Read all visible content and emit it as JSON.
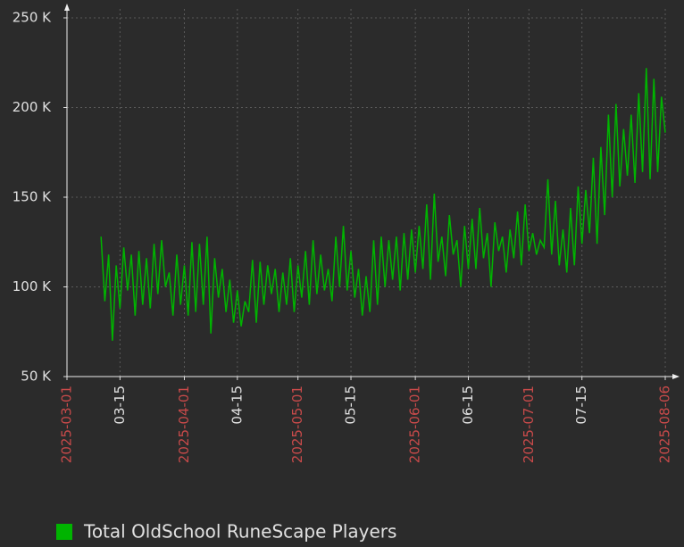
{
  "chart_data": {
    "type": "line",
    "x": [
      "2025-03-10",
      "2025-03-11",
      "2025-03-12",
      "2025-03-13",
      "2025-03-14",
      "2025-03-15",
      "2025-03-16",
      "2025-03-17",
      "2025-03-18",
      "2025-03-19",
      "2025-03-20",
      "2025-03-21",
      "2025-03-22",
      "2025-03-23",
      "2025-03-24",
      "2025-03-25",
      "2025-03-26",
      "2025-03-27",
      "2025-03-28",
      "2025-03-29",
      "2025-03-30",
      "2025-03-31",
      "2025-04-01",
      "2025-04-02",
      "2025-04-03",
      "2025-04-04",
      "2025-04-05",
      "2025-04-06",
      "2025-04-07",
      "2025-04-08",
      "2025-04-09",
      "2025-04-10",
      "2025-04-11",
      "2025-04-12",
      "2025-04-13",
      "2025-04-14",
      "2025-04-15",
      "2025-04-16",
      "2025-04-17",
      "2025-04-18",
      "2025-04-19",
      "2025-04-20",
      "2025-04-21",
      "2025-04-22",
      "2025-04-23",
      "2025-04-24",
      "2025-04-25",
      "2025-04-26",
      "2025-04-27",
      "2025-04-28",
      "2025-04-29",
      "2025-04-30",
      "2025-05-01",
      "2025-05-02",
      "2025-05-03",
      "2025-05-04",
      "2025-05-05",
      "2025-05-06",
      "2025-05-07",
      "2025-05-08",
      "2025-05-09",
      "2025-05-10",
      "2025-05-11",
      "2025-05-12",
      "2025-05-13",
      "2025-05-14",
      "2025-05-15",
      "2025-05-16",
      "2025-05-17",
      "2025-05-18",
      "2025-05-19",
      "2025-05-20",
      "2025-05-21",
      "2025-05-22",
      "2025-05-23",
      "2025-05-24",
      "2025-05-25",
      "2025-05-26",
      "2025-05-27",
      "2025-05-28",
      "2025-05-29",
      "2025-05-30",
      "2025-05-31",
      "2025-06-01",
      "2025-06-02",
      "2025-06-03",
      "2025-06-04",
      "2025-06-05",
      "2025-06-06",
      "2025-06-07",
      "2025-06-08",
      "2025-06-09",
      "2025-06-10",
      "2025-06-11",
      "2025-06-12",
      "2025-06-13",
      "2025-06-14",
      "2025-06-15",
      "2025-06-16",
      "2025-06-17",
      "2025-06-18",
      "2025-06-19",
      "2025-06-20",
      "2025-06-21",
      "2025-06-22",
      "2025-06-23",
      "2025-06-24",
      "2025-06-25",
      "2025-06-26",
      "2025-06-27",
      "2025-06-28",
      "2025-06-29",
      "2025-06-30",
      "2025-07-01",
      "2025-07-02",
      "2025-07-03",
      "2025-07-04",
      "2025-07-05",
      "2025-07-06",
      "2025-07-07",
      "2025-07-08",
      "2025-07-09",
      "2025-07-10",
      "2025-07-11",
      "2025-07-12",
      "2025-07-13",
      "2025-07-14",
      "2025-07-15",
      "2025-07-16",
      "2025-07-17",
      "2025-07-18",
      "2025-07-19",
      "2025-07-20",
      "2025-07-21",
      "2025-07-22",
      "2025-07-23",
      "2025-07-24",
      "2025-07-25",
      "2025-07-26",
      "2025-07-27",
      "2025-07-28",
      "2025-07-29",
      "2025-07-30",
      "2025-07-31",
      "2025-08-01",
      "2025-08-02",
      "2025-08-03",
      "2025-08-04",
      "2025-08-05",
      "2025-08-06"
    ],
    "series": [
      {
        "name": "Total OldSchool RuneScape Players",
        "color": "#00b400",
        "values": [
          128000,
          92000,
          118000,
          70000,
          112000,
          88000,
          122000,
          98000,
          118000,
          84000,
          120000,
          90000,
          116000,
          88000,
          124000,
          96000,
          126000,
          100000,
          108000,
          84000,
          118000,
          90000,
          112000,
          84000,
          125000,
          86000,
          124000,
          90000,
          128000,
          74000,
          116000,
          94000,
          110000,
          86000,
          104000,
          80000,
          98000,
          78000,
          92000,
          86000,
          115000,
          80000,
          114000,
          90000,
          112000,
          96000,
          110000,
          86000,
          108000,
          90000,
          116000,
          86000,
          112000,
          94000,
          120000,
          90000,
          126000,
          96000,
          118000,
          98000,
          110000,
          92000,
          128000,
          100000,
          134000,
          98000,
          120000,
          94000,
          110000,
          84000,
          106000,
          86000,
          126000,
          90000,
          128000,
          100000,
          126000,
          104000,
          128000,
          98000,
          130000,
          104000,
          132000,
          108000,
          134000,
          110000,
          146000,
          104000,
          152000,
          114000,
          128000,
          106000,
          140000,
          118000,
          126000,
          100000,
          134000,
          110000,
          138000,
          110000,
          144000,
          116000,
          130000,
          100000,
          136000,
          120000,
          128000,
          108000,
          132000,
          116000,
          142000,
          112000,
          146000,
          120000,
          130000,
          118000,
          126000,
          122000,
          160000,
          118000,
          148000,
          112000,
          132000,
          108000,
          144000,
          112000,
          156000,
          124000,
          154000,
          130000,
          172000,
          124000,
          178000,
          140000,
          196000,
          150000,
          202000,
          156000,
          188000,
          162000,
          196000,
          158000,
          208000,
          164000,
          222000,
          160000,
          216000,
          164000,
          206000,
          186000
        ]
      }
    ],
    "xlim": [
      "2025-03-01",
      "2025-08-06"
    ],
    "xticks": [
      "2025-03-01",
      {
        "value": "2025-03-15",
        "label": "03-15"
      },
      "2025-04-01",
      {
        "value": "2025-04-15",
        "label": "04-15"
      },
      "2025-05-01",
      {
        "value": "2025-05-15",
        "label": "05-15"
      },
      "2025-06-01",
      {
        "value": "2025-06-15",
        "label": "06-15"
      },
      "2025-07-01",
      {
        "value": "2025-07-15",
        "label": "07-15"
      },
      "2025-08-06"
    ],
    "ylim": [
      50000,
      250000
    ],
    "yticks": [
      {
        "value": 50000,
        "label": "50 K"
      },
      {
        "value": 100000,
        "label": "100 K"
      },
      {
        "value": 150000,
        "label": "150 K"
      },
      {
        "value": 200000,
        "label": "200 K"
      },
      {
        "value": 250000,
        "label": "250 K"
      }
    ],
    "grid": true
  }
}
